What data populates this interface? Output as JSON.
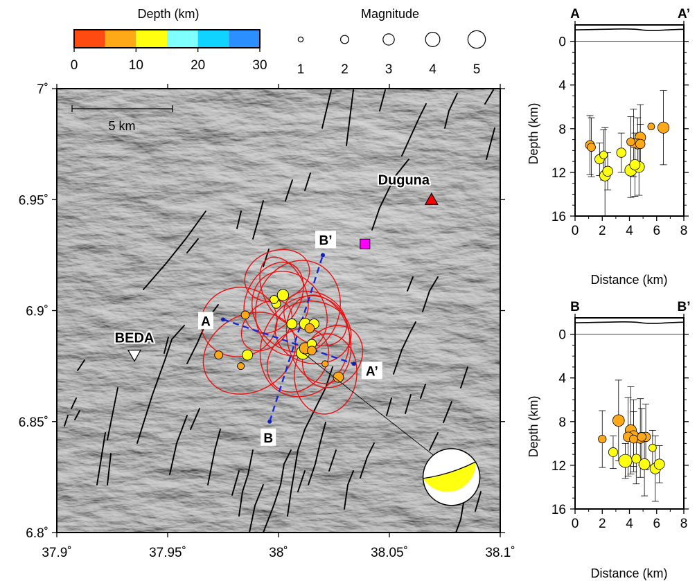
{
  "depth_legend": {
    "title": "Depth (km)",
    "ticks": [
      "0",
      "10",
      "20",
      "30"
    ],
    "bins": [
      {
        "from": 0,
        "to": 5,
        "color": "#ff4a12"
      },
      {
        "from": 5,
        "to": 10,
        "color": "#ffa818"
      },
      {
        "from": 10,
        "to": 15,
        "color": "#ffff10"
      },
      {
        "from": 15,
        "to": 20,
        "color": "#80ffff"
      },
      {
        "from": 20,
        "to": 25,
        "color": "#10d4ff"
      },
      {
        "from": 25,
        "to": 30,
        "color": "#2b8fff"
      }
    ]
  },
  "magnitude_legend": {
    "title": "Magnitude",
    "values": [
      "1",
      "2",
      "3",
      "4",
      "5"
    ]
  },
  "map": {
    "lon_ticks": [
      "37.9˚",
      "37.95˚",
      "38˚",
      "38.05˚",
      "38.1˚"
    ],
    "lat_ticks": [
      "7˚",
      "6.95˚",
      "6.9˚",
      "6.85˚",
      "6.8˚"
    ],
    "lon_range": [
      37.9,
      38.1
    ],
    "lat_range": [
      6.8,
      7.0
    ],
    "scale_bar_label": "5 km",
    "stations": [
      {
        "name": "Duguna",
        "lon": 38.069,
        "lat": 6.95,
        "symbol": "triangle-up",
        "color": "#ff0000"
      },
      {
        "name": "BEDA",
        "lon": 37.935,
        "lat": 6.88,
        "symbol": "triangle-down",
        "color": "#ffffff"
      }
    ],
    "square_marker": {
      "lon": 38.039,
      "lat": 6.93,
      "color": "#ff00ff"
    },
    "profile_a": {
      "start_label": "A",
      "end_label": "A’",
      "start": [
        37.975,
        6.896
      ],
      "end": [
        38.034,
        6.876
      ]
    },
    "profile_b": {
      "start_label": "B",
      "end_label": "B’",
      "start": [
        37.996,
        6.85
      ],
      "end": [
        38.02,
        6.925
      ]
    },
    "events": [
      {
        "lon": 37.998,
        "lat": 6.905,
        "mag": 2.0,
        "depth": 10.5
      },
      {
        "lon": 37.999,
        "lat": 6.903,
        "mag": 2.2,
        "depth": 10.8
      },
      {
        "lon": 38.002,
        "lat": 6.907,
        "mag": 3.0,
        "depth": 11.4
      },
      {
        "lon": 37.985,
        "lat": 6.898,
        "mag": 2.0,
        "depth": 9.3
      },
      {
        "lon": 38.006,
        "lat": 6.894,
        "mag": 2.6,
        "depth": 10.5
      },
      {
        "lon": 38.012,
        "lat": 6.894,
        "mag": 3.0,
        "depth": 11.9
      },
      {
        "lon": 38.014,
        "lat": 6.892,
        "mag": 2.4,
        "depth": 8.9
      },
      {
        "lon": 38.016,
        "lat": 6.894,
        "mag": 2.6,
        "depth": 10.2
      },
      {
        "lon": 37.986,
        "lat": 6.88,
        "mag": 2.7,
        "depth": 11.0
      },
      {
        "lon": 37.973,
        "lat": 6.88,
        "mag": 2.0,
        "depth": 9.5
      },
      {
        "lon": 37.983,
        "lat": 6.875,
        "mag": 1.6,
        "depth": 7.9
      },
      {
        "lon": 38.011,
        "lat": 6.881,
        "mag": 3.6,
        "depth": 12.2
      },
      {
        "lon": 38.012,
        "lat": 6.883,
        "mag": 3.0,
        "depth": 9.4
      },
      {
        "lon": 38.015,
        "lat": 6.885,
        "mag": 2.3,
        "depth": 10.8
      },
      {
        "lon": 38.015,
        "lat": 6.882,
        "mag": 2.2,
        "depth": 9.6
      },
      {
        "lon": 38.021,
        "lat": 6.876,
        "mag": 1.4,
        "depth": 7.8
      },
      {
        "lon": 38.027,
        "lat": 6.87,
        "mag": 2.7,
        "depth": 8.7
      }
    ],
    "beachball": {
      "lon": 38.078,
      "lat": 6.825
    }
  },
  "section_aa": {
    "left_label": "A",
    "right_label": "A’",
    "ylabel": "Depth (km)",
    "xlabel": "Distance (km)",
    "x_ticks": [
      "0",
      "2",
      "4",
      "6",
      "8"
    ],
    "y_ticks": [
      "0",
      "4",
      "8",
      "12",
      "16"
    ],
    "xlim": [
      0,
      8
    ],
    "ylim": [
      16,
      -1.5
    ]
  },
  "section_bb": {
    "left_label": "B",
    "right_label": "B’",
    "ylabel": "Depth (km)",
    "xlabel": "Distance (km)",
    "x_ticks": [
      "0",
      "2",
      "4",
      "6",
      "8"
    ],
    "y_ticks": [
      "0",
      "4",
      "8",
      "12",
      "16"
    ],
    "xlim": [
      0,
      8
    ],
    "ylim": [
      16,
      -1.5
    ]
  },
  "chart_data": [
    {
      "type": "scatter",
      "name": "A-A’ cross section",
      "xlabel": "Distance (km)",
      "ylabel": "Depth (km)",
      "xlim": [
        0,
        8
      ],
      "ylim": [
        16,
        0
      ],
      "points": [
        {
          "x": 1.1,
          "y": 9.5,
          "mag": 2.3,
          "err": 2.7
        },
        {
          "x": 1.2,
          "y": 9.7,
          "mag": 2.0,
          "err": 2.7
        },
        {
          "x": 1.8,
          "y": 10.8,
          "mag": 2.4,
          "err": 1.5
        },
        {
          "x": 2.1,
          "y": 10.4,
          "mag": 1.9,
          "err": 2.3
        },
        {
          "x": 2.2,
          "y": 12.3,
          "mag": 2.8,
          "err": 4.4
        },
        {
          "x": 2.4,
          "y": 11.9,
          "mag": 2.6,
          "err": 1.7
        },
        {
          "x": 3.4,
          "y": 10.2,
          "mag": 2.4,
          "err": 1.8
        },
        {
          "x": 4.1,
          "y": 11.8,
          "mag": 3.2,
          "err": 2.5
        },
        {
          "x": 4.3,
          "y": 9.3,
          "mag": 2.4,
          "err": 3.1
        },
        {
          "x": 4.4,
          "y": 11.3,
          "mag": 2.7,
          "err": 2.9
        },
        {
          "x": 4.6,
          "y": 9.4,
          "mag": 2.6,
          "err": 2.4
        },
        {
          "x": 4.7,
          "y": 11.5,
          "mag": 2.9,
          "err": 2.6
        },
        {
          "x": 4.8,
          "y": 8.8,
          "mag": 2.8,
          "err": 3.0
        },
        {
          "x": 4.8,
          "y": 9.4,
          "mag": 2.4,
          "err": 1.8
        },
        {
          "x": 5.6,
          "y": 7.8,
          "mag": 1.6,
          "err": 0.0
        },
        {
          "x": 6.5,
          "y": 7.9,
          "mag": 3.0,
          "err": 3.4
        },
        {
          "x": 4.1,
          "y": 9.2,
          "mag": 2.0,
          "err": 2.3
        }
      ]
    },
    {
      "type": "scatter",
      "name": "B-B’ cross section",
      "xlabel": "Distance (km)",
      "ylabel": "Depth (km)",
      "xlim": [
        0,
        8
      ],
      "ylim": [
        16,
        0
      ],
      "points": [
        {
          "x": 2.0,
          "y": 9.6,
          "mag": 1.9,
          "err": 2.6
        },
        {
          "x": 2.8,
          "y": 10.8,
          "mag": 2.3,
          "err": 1.5
        },
        {
          "x": 3.2,
          "y": 7.9,
          "mag": 3.1,
          "err": 3.7
        },
        {
          "x": 3.7,
          "y": 11.6,
          "mag": 3.6,
          "err": 1.6
        },
        {
          "x": 3.9,
          "y": 9.4,
          "mag": 2.5,
          "err": 3.6
        },
        {
          "x": 4.1,
          "y": 8.8,
          "mag": 3.0,
          "err": 4.0
        },
        {
          "x": 4.3,
          "y": 9.3,
          "mag": 2.7,
          "err": 3.3
        },
        {
          "x": 4.5,
          "y": 11.4,
          "mag": 2.3,
          "err": 2.3
        },
        {
          "x": 4.8,
          "y": 9.5,
          "mag": 2.8,
          "err": 3.6
        },
        {
          "x": 4.9,
          "y": 9.4,
          "mag": 2.2,
          "err": 2.6
        },
        {
          "x": 5.1,
          "y": 11.9,
          "mag": 2.9,
          "err": 2.9
        },
        {
          "x": 5.2,
          "y": 9.4,
          "mag": 2.4,
          "err": 3.0
        },
        {
          "x": 5.7,
          "y": 10.4,
          "mag": 1.8,
          "err": 1.6
        },
        {
          "x": 5.9,
          "y": 12.3,
          "mag": 2.8,
          "err": 3.0
        },
        {
          "x": 6.2,
          "y": 11.9,
          "mag": 2.7,
          "err": 1.7
        },
        {
          "x": 4.3,
          "y": 9.6,
          "mag": 2.0,
          "err": 2.5
        }
      ]
    }
  ]
}
